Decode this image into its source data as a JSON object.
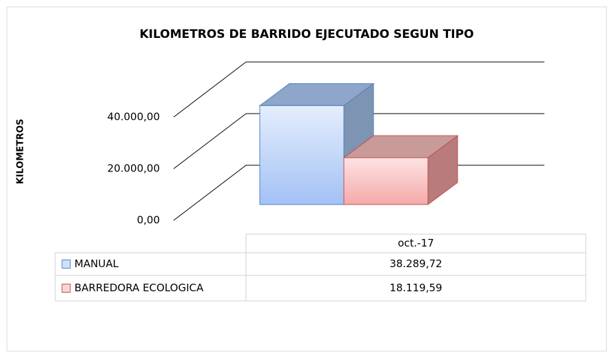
{
  "chart_data": {
    "type": "bar3d",
    "title": "KILOMETROS DE BARRIDO EJECUTADO SEGUN TIPO",
    "y_label": "KILOMETROS",
    "categories": [
      "oct.-17"
    ],
    "series": [
      {
        "name": "MANUAL",
        "color": "#4f81bd",
        "values": [
          38289.72
        ],
        "value_labels": [
          "38.289,72"
        ]
      },
      {
        "name": "BARREDORA ECOLOGICA",
        "color": "#c0504d",
        "values": [
          18119.59
        ],
        "value_labels": [
          "18.119,59"
        ]
      }
    ],
    "ylim": [
      0,
      40000
    ],
    "yticks": [
      {
        "value": 0,
        "label": "0,00"
      },
      {
        "value": 20000,
        "label": "20.000,00"
      },
      {
        "value": 40000,
        "label": "40.000,00"
      }
    ],
    "grid": true
  }
}
